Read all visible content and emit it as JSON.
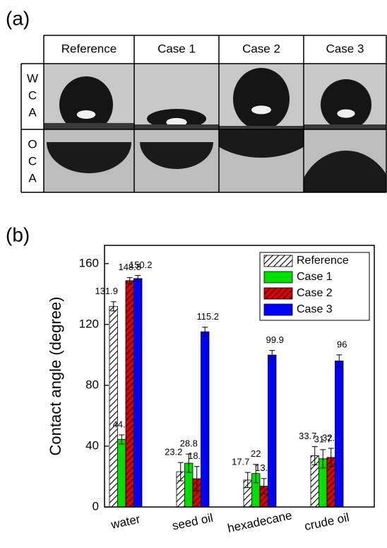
{
  "panel_a": {
    "label": "(a)",
    "columns": [
      "Reference",
      "Case 1",
      "Case 2",
      "Case 3"
    ],
    "rows": [
      [
        "W",
        "C",
        "A"
      ],
      [
        "O",
        "C",
        "A"
      ]
    ]
  },
  "chart_data": {
    "type": "bar",
    "panel_label": "(b)",
    "y_label": "Contact angle (degree)",
    "categories": [
      "water",
      "seed oil",
      "hexadecane",
      "crude oil"
    ],
    "series": [
      {
        "name": "Reference",
        "color": "#ffffff",
        "hatch": true,
        "values": [
          131.9,
          23.2,
          17.7,
          33.7
        ],
        "errors": [
          3,
          6,
          5,
          6
        ]
      },
      {
        "name": "Case 1",
        "color": "#00e000",
        "hatch": false,
        "values": [
          44.4,
          28.8,
          22,
          31.7
        ],
        "errors": [
          3,
          6,
          6,
          6
        ]
      },
      {
        "name": "Case 2",
        "color": "#e00000",
        "hatch": true,
        "values": [
          148.8,
          18.6,
          13.7,
          32.6
        ],
        "errors": [
          2,
          8,
          5,
          6
        ]
      },
      {
        "name": "Case 3",
        "color": "#0000ff",
        "hatch": false,
        "values": [
          150.2,
          115.2,
          99.9,
          96
        ],
        "errors": [
          2,
          3,
          3,
          4
        ]
      }
    ],
    "ylim": [
      0,
      172
    ],
    "yticks": [
      0,
      40,
      80,
      120,
      160
    ],
    "legend": "upper-right"
  }
}
